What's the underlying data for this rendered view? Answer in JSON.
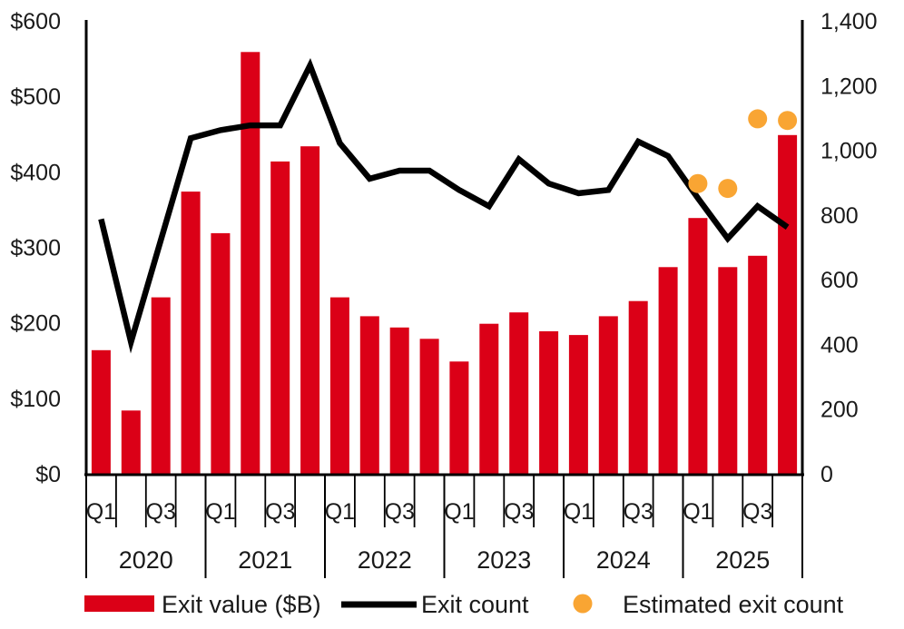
{
  "chart_data": {
    "type": "combo",
    "categories": [
      "Q1 2020",
      "Q2 2020",
      "Q3 2020",
      "Q4 2020",
      "Q1 2021",
      "Q2 2021",
      "Q3 2021",
      "Q4 2021",
      "Q1 2022",
      "Q2 2022",
      "Q3 2022",
      "Q4 2022",
      "Q1 2023",
      "Q2 2023",
      "Q3 2023",
      "Q4 2023",
      "Q1 2024",
      "Q2 2024",
      "Q3 2024",
      "Q4 2024",
      "Q1 2025",
      "Q2 2025",
      "Q3 2025",
      "Q4 2025"
    ],
    "x_axis": {
      "years": [
        "2020",
        "2021",
        "2022",
        "2023",
        "2024",
        "2025"
      ],
      "quarters_per_year": 4,
      "quarter_tick_labels": [
        "Q1",
        "Q3"
      ],
      "quarter_label_slots": [
        0,
        2
      ]
    },
    "left_axis": {
      "min": 0,
      "max": 600,
      "tick_step": 100,
      "tick_labels": [
        "$0",
        "$100",
        "$200",
        "$300",
        "$400",
        "$500",
        "$600"
      ]
    },
    "right_axis": {
      "min": 0,
      "max": 1400,
      "tick_step": 200,
      "tick_labels": [
        "0",
        "200",
        "400",
        "600",
        "800",
        "1,000",
        "1,200",
        "1,400"
      ]
    },
    "series": [
      {
        "name": "Exit value ($B)",
        "type": "bar",
        "axis": "left",
        "color": "#DB0017",
        "values": [
          165,
          85,
          235,
          375,
          320,
          560,
          415,
          435,
          235,
          210,
          195,
          180,
          150,
          200,
          215,
          190,
          185,
          210,
          230,
          275,
          340,
          275,
          290,
          450
        ]
      },
      {
        "name": "Exit count",
        "type": "line",
        "axis": "right",
        "color": "#000000",
        "values": [
          790,
          410,
          725,
          1040,
          1065,
          1080,
          1080,
          1265,
          1025,
          915,
          940,
          940,
          880,
          830,
          975,
          900,
          870,
          880,
          1030,
          985,
          855,
          730,
          830,
          765
        ]
      },
      {
        "name": "Estimated exit count",
        "type": "scatter",
        "axis": "right",
        "color": "#F9A533",
        "points": [
          {
            "category": "Q1 2025",
            "index": 20,
            "value": 900
          },
          {
            "category": "Q2 2025",
            "index": 21,
            "value": 885
          },
          {
            "category": "Q3 2025",
            "index": 22,
            "value": 1100
          },
          {
            "category": "Q4 2025",
            "index": 23,
            "value": 1095
          }
        ]
      }
    ],
    "legend": [
      {
        "label": "Exit value ($B)",
        "swatch": "bar",
        "color": "#DB0017"
      },
      {
        "label": "Exit count",
        "swatch": "line",
        "color": "#000000"
      },
      {
        "label": "Estimated exit count",
        "swatch": "dot",
        "color": "#F9A533"
      }
    ],
    "grid": "off",
    "legend_position": "bottom"
  }
}
